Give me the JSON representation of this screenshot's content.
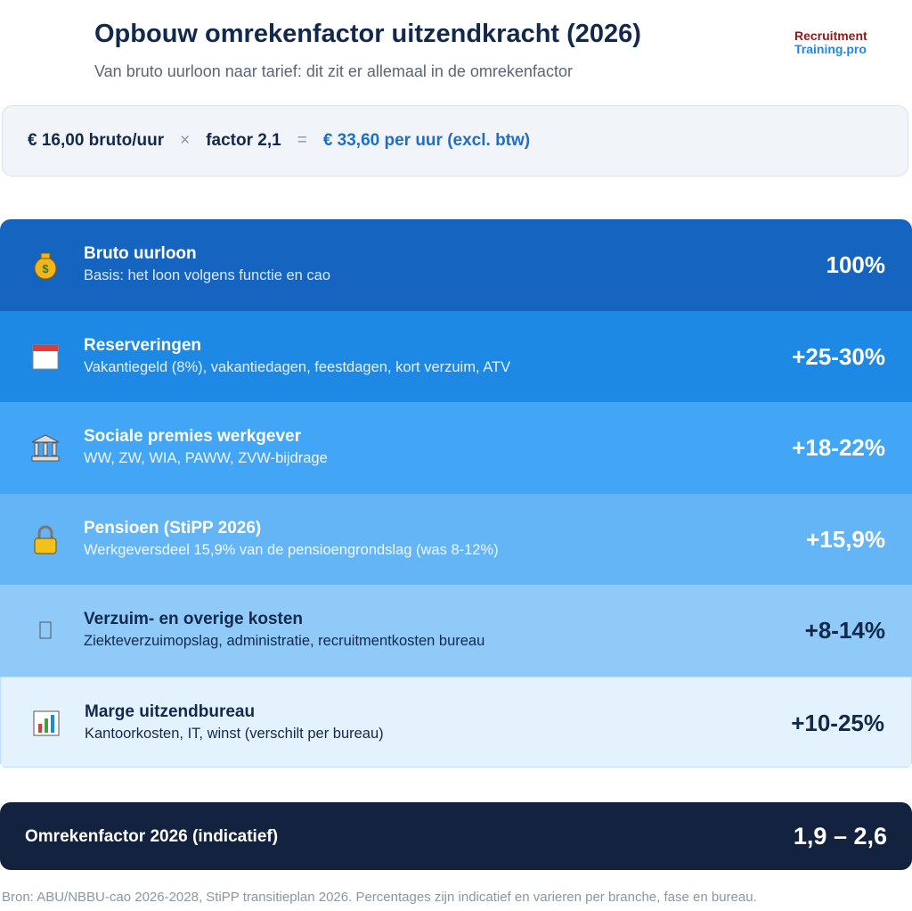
{
  "header": {
    "title": "Opbouw omrekenfactor uitzendkracht (2026)",
    "subtitle": "Van bruto uurloon naar tarief: dit zit er allemaal in de omrekenfactor",
    "logo": [
      "Recruitment",
      "Training.pro"
    ]
  },
  "formula": {
    "wage": "€ 16,00 bruto/uur",
    "times": "×",
    "factor": "factor 2,1",
    "equals": "=",
    "result": "€ 33,60 per uur (excl. btw)"
  },
  "rows": [
    {
      "title": "Bruto uurloon",
      "desc": "Basis: het loon volgens functie en cao",
      "value": "100%"
    },
    {
      "title": "Reserveringen",
      "desc": "Vakantiegeld (8%), vakantiedagen, feestdagen, kort verzuim, ATV",
      "value": "+25-30%"
    },
    {
      "title": "Sociale premies werkgever",
      "desc": "WW, ZW, WIA, PAWW, ZVW-bijdrage",
      "value": "+18-22%"
    },
    {
      "title": "Pensioen (StiPP 2026)",
      "desc": "Werkgeversdeel 15,9% van de pensioengrondslag (was 8-12%)",
      "value": "+15,9%"
    },
    {
      "title": "Verzuim- en overige kosten",
      "desc": "Ziekteverzuimopslag, administratie, recruitmentkosten bureau",
      "value": "+8-14%"
    },
    {
      "title": "Marge uitzendbureau",
      "desc": "Kantoorkosten, IT, winst (verschilt per bureau)",
      "value": "+10-25%"
    }
  ],
  "total": {
    "label": "Omrekenfactor 2026 (indicatief)",
    "value": "1,9 – 2,6"
  },
  "source": "Bron: ABU/NBBU-cao 2026-2028, StiPP transitieplan 2026. Percentages zijn indicatief en varieren per branche, fase en bureau."
}
